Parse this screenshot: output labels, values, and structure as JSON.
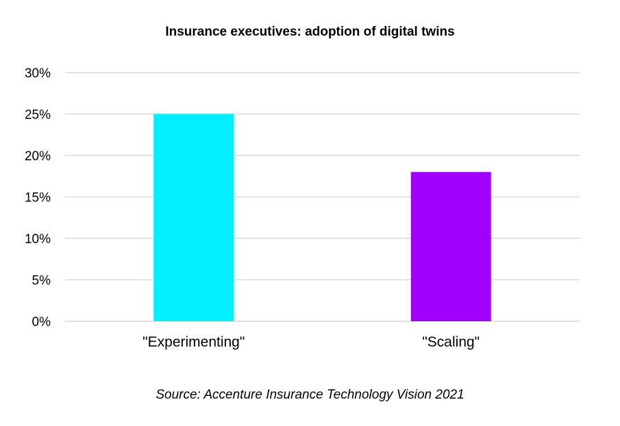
{
  "chart_data": {
    "type": "bar",
    "title": "Insurance executives: adoption of digital twins",
    "categories": [
      "\"Experimenting\"",
      "\"Scaling\""
    ],
    "values": [
      25,
      18
    ],
    "colors": [
      "#00F0FF",
      "#A100FF"
    ],
    "ylim": [
      0,
      30
    ],
    "yticks": [
      0,
      5,
      10,
      15,
      20,
      25,
      30
    ],
    "ytick_labels": [
      "0%",
      "5%",
      "10%",
      "15%",
      "20%",
      "25%",
      "30%"
    ],
    "xlabel": "",
    "ylabel": "",
    "grid": true,
    "gridline_color": "#D9D9D9",
    "annotation": "Source: Accenture Insurance Technology Vision 2021"
  }
}
